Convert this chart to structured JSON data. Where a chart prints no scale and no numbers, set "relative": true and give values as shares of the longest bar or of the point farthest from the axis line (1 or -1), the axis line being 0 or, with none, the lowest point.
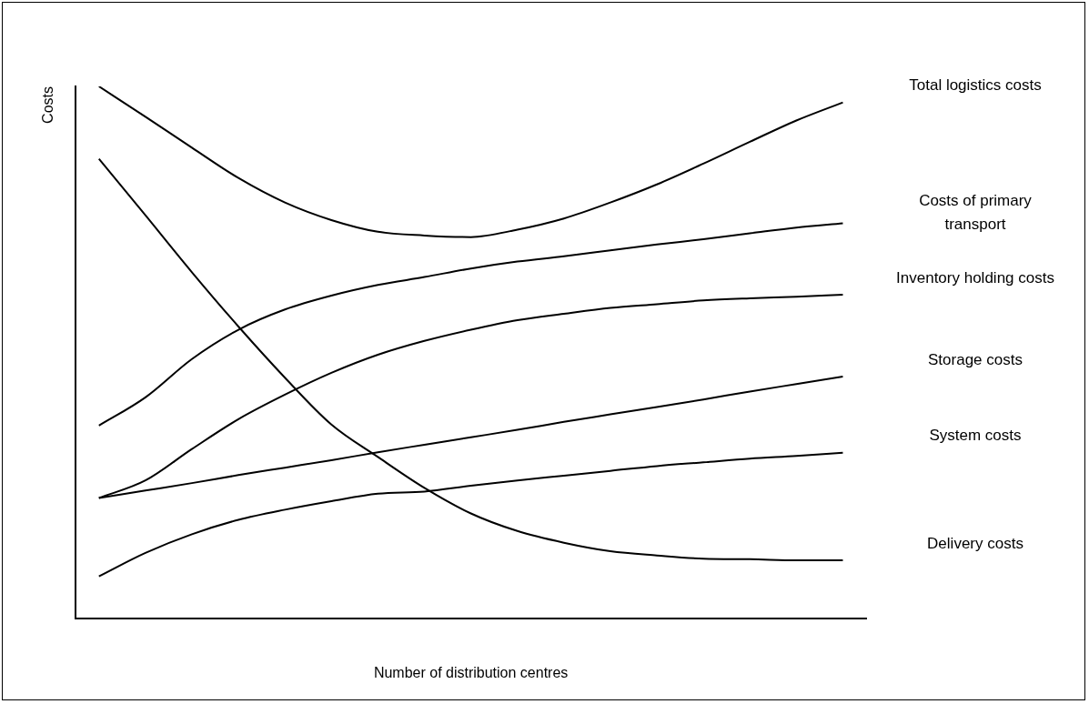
{
  "chart_data": {
    "type": "line",
    "relative": true,
    "xlabel": "Number of distribution centres",
    "ylabel": "Costs",
    "legend": false,
    "grid": false,
    "marker": "none",
    "line_style": "solid",
    "categories": [
      null,
      null,
      null,
      null,
      null,
      null,
      null,
      null,
      null,
      null,
      null,
      null,
      null,
      null,
      null,
      null,
      null
    ],
    "series": [
      {
        "name": "Total logistics costs",
        "color": "#000000",
        "values": [
          1.0,
          0.943,
          0.885,
          0.828,
          0.782,
          0.749,
          0.727,
          0.72,
          0.717,
          0.731,
          0.752,
          0.782,
          0.816,
          0.855,
          0.896,
          0.936,
          0.97
        ]
      },
      {
        "name": "Costs of primary transport",
        "color": "#000000",
        "values": [
          0.363,
          0.416,
          0.488,
          0.543,
          0.581,
          0.607,
          0.627,
          0.642,
          0.658,
          0.671,
          0.681,
          0.692,
          0.703,
          0.713,
          0.724,
          0.735,
          0.743
        ]
      },
      {
        "name": "Inventory holding costs",
        "color": "#000000",
        "values": [
          0.227,
          0.26,
          0.319,
          0.375,
          0.421,
          0.462,
          0.496,
          0.522,
          0.543,
          0.561,
          0.573,
          0.584,
          0.591,
          0.598,
          0.602,
          0.605,
          0.609
        ]
      },
      {
        "name": "Storage costs",
        "color": "#000000",
        "values": [
          0.227,
          0.241,
          0.255,
          0.27,
          0.284,
          0.298,
          0.313,
          0.327,
          0.341,
          0.355,
          0.37,
          0.384,
          0.398,
          0.412,
          0.427,
          0.441,
          0.455
        ]
      },
      {
        "name": "System costs",
        "color": "#000000",
        "values": [
          0.08,
          0.124,
          0.159,
          0.186,
          0.205,
          0.221,
          0.235,
          0.239,
          0.25,
          0.26,
          0.269,
          0.278,
          0.287,
          0.294,
          0.301,
          0.306,
          0.312
        ]
      },
      {
        "name": "Delivery costs",
        "color": "#000000",
        "values": [
          0.864,
          0.758,
          0.651,
          0.549,
          0.453,
          0.365,
          0.304,
          0.246,
          0.198,
          0.165,
          0.143,
          0.127,
          0.119,
          0.113,
          0.112,
          0.11,
          0.11
        ]
      }
    ]
  }
}
